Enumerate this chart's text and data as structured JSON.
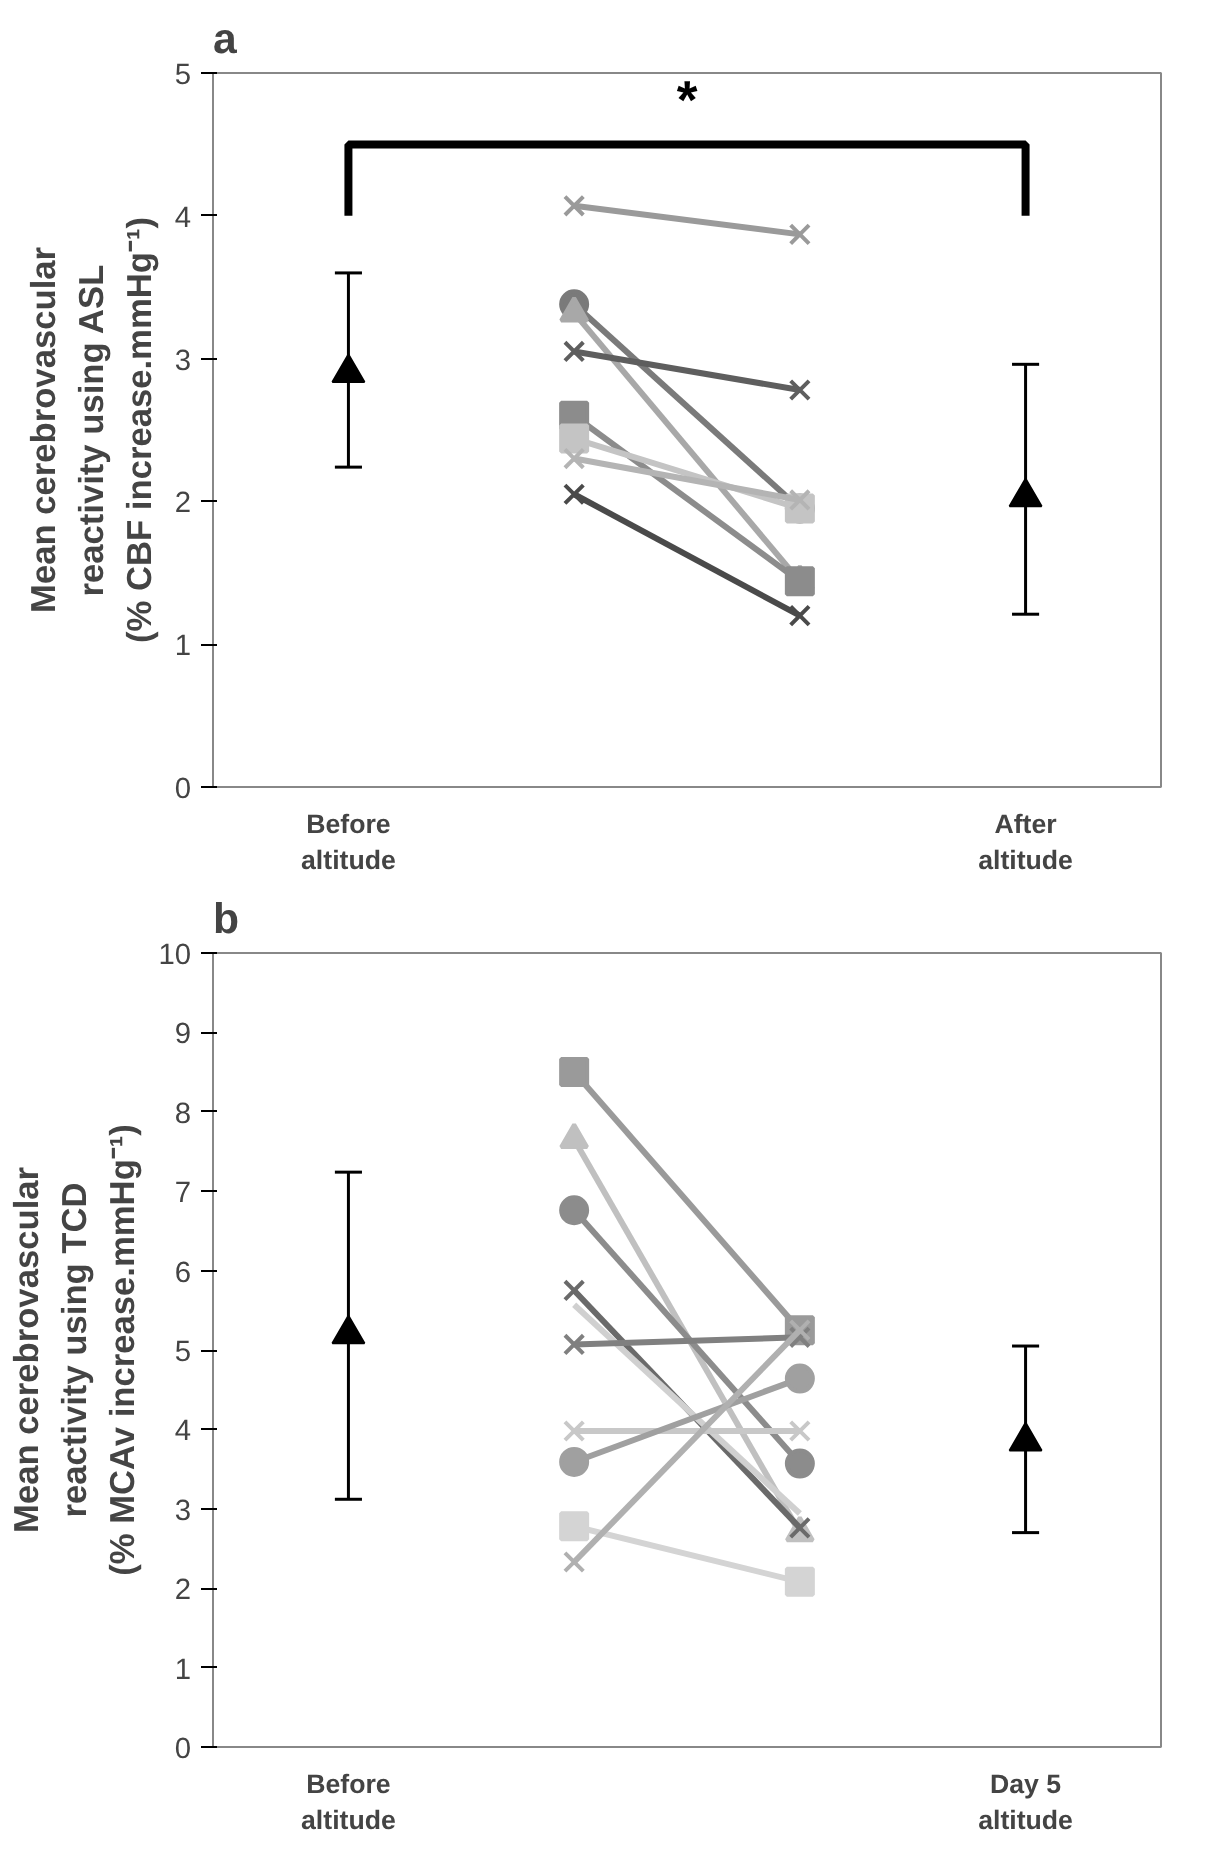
{
  "chart_data": [
    {
      "type": "line",
      "title": "a",
      "ylabel": "Mean cerebrovascular\nreactivity using ASL\n(% CBF increase.mmHg⁻¹)",
      "categories": [
        "Before altitude",
        null,
        null,
        "After altitude"
      ],
      "ylim": [
        0,
        5
      ],
      "yticks": [
        0,
        1,
        2,
        3,
        4,
        5
      ],
      "annotations": [
        "*"
      ],
      "series": [
        {
          "type": "line",
          "color": "#9a9a9a",
          "marker": "cross",
          "values": [
            null,
            4.07,
            3.87,
            null
          ]
        },
        {
          "type": "line",
          "color": "#7a7a7a",
          "marker": "circle",
          "values": [
            null,
            3.38,
            1.95,
            null
          ]
        },
        {
          "type": "line",
          "color": "#a8a8a8",
          "marker": "triangle",
          "values": [
            null,
            3.32,
            1.44,
            null
          ]
        },
        {
          "type": "line",
          "color": "#5e5e5e",
          "marker": "cross",
          "values": [
            null,
            3.05,
            2.78,
            null
          ]
        },
        {
          "type": "line",
          "color": "#8c8c8c",
          "marker": "square",
          "values": [
            null,
            2.6,
            1.44,
            null
          ]
        },
        {
          "type": "line",
          "color": "#c4c4c4",
          "marker": "square",
          "values": [
            null,
            2.44,
            1.95,
            null
          ]
        },
        {
          "type": "line",
          "color": "#b4b4b4",
          "marker": "cross",
          "values": [
            null,
            2.3,
            2.01,
            null
          ]
        },
        {
          "type": "line",
          "color": "#4a4a4a",
          "marker": "cross",
          "values": [
            null,
            2.05,
            1.2,
            null
          ]
        },
        {
          "type": "scatter",
          "color": "#000000",
          "marker": "triangle",
          "values": [
            2.9,
            null,
            null,
            2.03
          ],
          "errors": [
            [
              2.24,
              3.6
            ],
            null,
            null,
            [
              1.21,
              2.96
            ]
          ]
        }
      ]
    },
    {
      "type": "line",
      "title": "b",
      "ylabel": "Mean cerebrovascular\nreactivity using TCD\n(% MCAv increase.mmHg⁻¹)",
      "categories": [
        "Before altitude",
        null,
        null,
        "Day 5 altitude"
      ],
      "ylim": [
        0,
        10
      ],
      "yticks": [
        0,
        1,
        2,
        3,
        4,
        5,
        6,
        7,
        8,
        9,
        10
      ],
      "series": [
        {
          "type": "line",
          "color": "#9a9a9a",
          "marker": "square",
          "values": [
            null,
            8.5,
            5.25,
            null
          ]
        },
        {
          "type": "line",
          "color": "#c0c0c0",
          "marker": "triangle",
          "values": [
            null,
            7.65,
            2.7,
            null
          ]
        },
        {
          "type": "line",
          "color": "#8c8c8c",
          "marker": "circle",
          "values": [
            null,
            6.76,
            3.57,
            null
          ]
        },
        {
          "type": "line",
          "color": "#6a6a6a",
          "marker": "cross",
          "values": [
            null,
            5.75,
            2.76,
            null
          ]
        },
        {
          "type": "line",
          "color": "#d0d0d0",
          "marker": "none",
          "values": [
            null,
            5.57,
            2.94,
            null
          ]
        },
        {
          "type": "line",
          "color": "#808080",
          "marker": "cross",
          "values": [
            null,
            5.07,
            5.16,
            null
          ]
        },
        {
          "type": "line",
          "color": "#c8c8c8",
          "marker": "cross",
          "values": [
            null,
            3.98,
            3.98,
            null
          ]
        },
        {
          "type": "line",
          "color": "#a0a0a0",
          "marker": "circle",
          "values": [
            null,
            3.59,
            4.64,
            null
          ]
        },
        {
          "type": "line",
          "color": "#d4d4d4",
          "marker": "square",
          "values": [
            null,
            2.78,
            2.08,
            null
          ]
        },
        {
          "type": "line",
          "color": "#b0b0b0",
          "marker": "cross",
          "values": [
            null,
            2.33,
            5.25,
            null
          ]
        },
        {
          "type": "scatter",
          "color": "#000000",
          "marker": "triangle",
          "values": [
            5.2,
            null,
            null,
            3.85
          ],
          "errors": [
            [
              3.12,
              7.24
            ],
            null,
            null,
            [
              2.7,
              5.05
            ]
          ]
        }
      ]
    }
  ]
}
